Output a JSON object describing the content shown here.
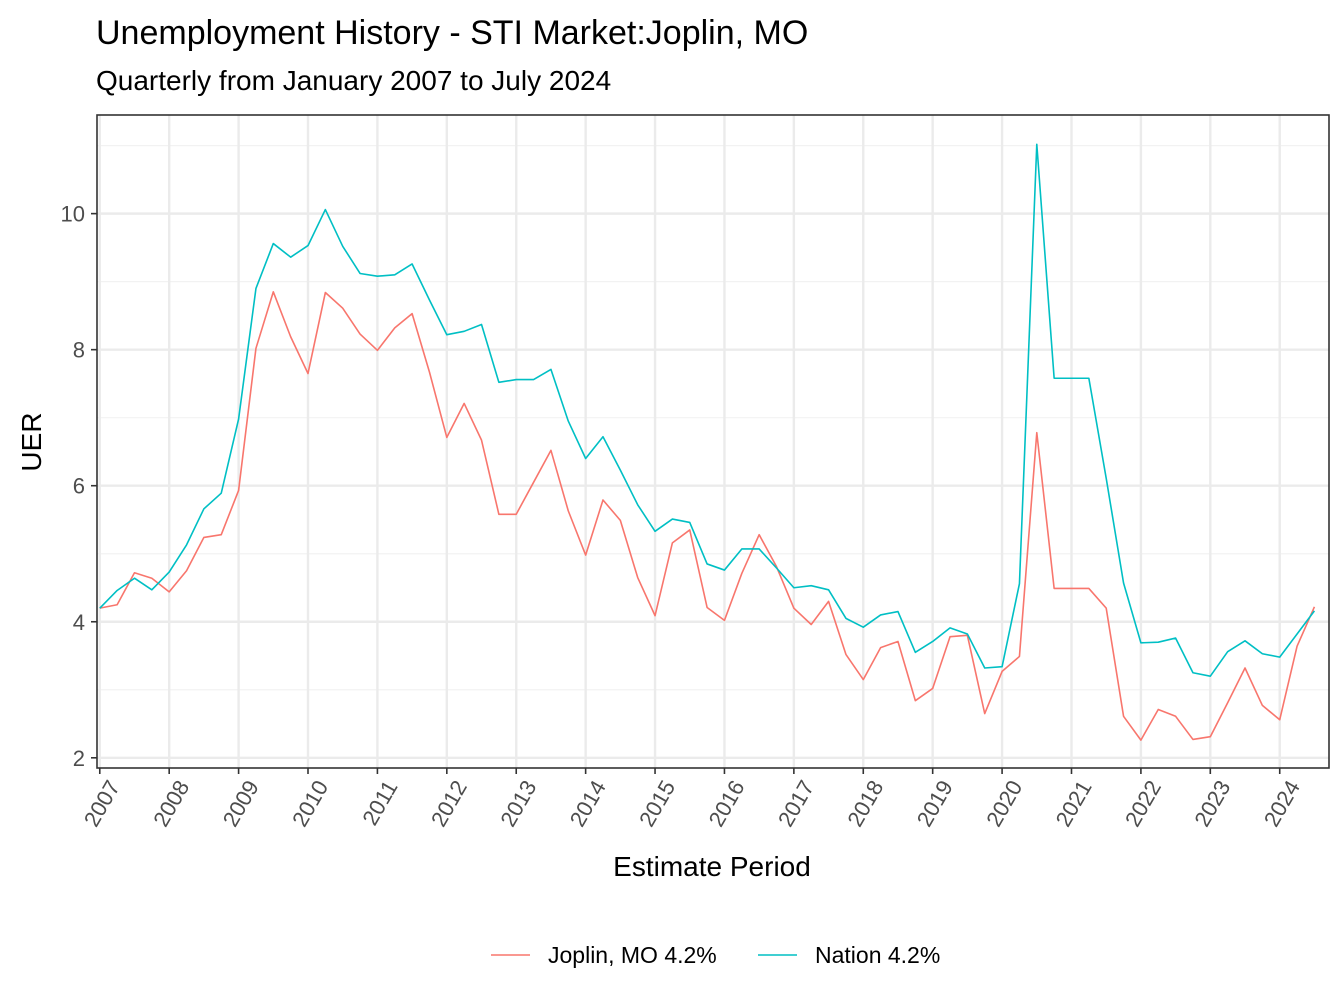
{
  "chart_data": {
    "type": "line",
    "title": "Unemployment History - STI Market:Joplin, MO",
    "subtitle": "Quarterly from January 2007 to July 2024",
    "xlabel": "Estimate Period",
    "ylabel": "UER",
    "x_ticks": [
      "2007",
      "2008",
      "2009",
      "2010",
      "2011",
      "2012",
      "2013",
      "2014",
      "2015",
      "2016",
      "2017",
      "2018",
      "2019",
      "2020",
      "2021",
      "2022",
      "2023",
      "2024"
    ],
    "y_ticks": [
      "2",
      "4",
      "6",
      "8",
      "10"
    ],
    "xlim": [
      2006.96,
      2024.71
    ],
    "ylim": [
      1.85,
      11.45
    ],
    "grid": true,
    "legend_position": "bottom",
    "x": [
      2007.0,
      2007.25,
      2007.5,
      2007.75,
      2008.0,
      2008.25,
      2008.5,
      2008.75,
      2009.0,
      2009.25,
      2009.5,
      2009.75,
      2010.0,
      2010.25,
      2010.5,
      2010.75,
      2011.0,
      2011.25,
      2011.5,
      2011.75,
      2012.0,
      2012.25,
      2012.5,
      2012.75,
      2013.0,
      2013.25,
      2013.5,
      2013.75,
      2014.0,
      2014.25,
      2014.5,
      2014.75,
      2015.0,
      2015.25,
      2015.5,
      2015.75,
      2016.0,
      2016.25,
      2016.5,
      2016.75,
      2017.0,
      2017.25,
      2017.5,
      2017.75,
      2018.0,
      2018.25,
      2018.5,
      2018.75,
      2019.0,
      2019.25,
      2019.5,
      2019.75,
      2020.0,
      2020.25,
      2020.5,
      2020.75,
      2021.0,
      2021.25,
      2021.5,
      2021.75,
      2022.0,
      2022.25,
      2022.5,
      2022.75,
      2023.0,
      2023.25,
      2023.5,
      2023.75,
      2024.0,
      2024.25,
      2024.5
    ],
    "series": [
      {
        "name": "Joplin, MO 4.2%",
        "color": "#F8766D",
        "values": [
          4.2,
          4.25,
          4.72,
          4.64,
          4.44,
          4.75,
          5.24,
          5.28,
          5.93,
          8.02,
          8.85,
          8.19,
          7.65,
          8.84,
          8.61,
          8.23,
          7.99,
          8.32,
          8.53,
          7.67,
          6.71,
          7.21,
          6.67,
          5.58,
          5.58,
          6.05,
          6.52,
          5.63,
          4.98,
          5.79,
          5.49,
          4.65,
          4.09,
          5.16,
          5.35,
          4.21,
          4.02,
          4.71,
          5.28,
          4.81,
          4.2,
          3.96,
          4.3,
          3.52,
          3.15,
          3.62,
          3.71,
          2.84,
          3.02,
          3.78,
          3.8,
          2.65,
          3.27,
          3.49,
          6.78,
          4.49,
          4.49,
          4.49,
          4.2,
          2.61,
          2.26,
          2.71,
          2.61,
          2.27,
          2.31,
          2.81,
          3.32,
          2.77,
          2.56,
          3.64,
          4.22
        ]
      },
      {
        "name": "Nation 4.2%",
        "color": "#00BFC4",
        "values": [
          4.2,
          4.46,
          4.64,
          4.47,
          4.73,
          5.13,
          5.66,
          5.89,
          6.98,
          8.9,
          9.56,
          9.36,
          9.53,
          10.06,
          9.52,
          9.12,
          9.08,
          9.1,
          9.26,
          8.73,
          8.22,
          8.27,
          8.37,
          7.52,
          7.56,
          7.56,
          7.71,
          6.95,
          6.4,
          6.72,
          6.23,
          5.72,
          5.33,
          5.51,
          5.46,
          4.85,
          4.76,
          5.07,
          5.07,
          4.79,
          4.5,
          4.53,
          4.47,
          4.05,
          3.92,
          4.1,
          4.15,
          3.55,
          3.71,
          3.91,
          3.82,
          3.32,
          3.34,
          4.56,
          11.02,
          7.58,
          7.58,
          7.58,
          6.11,
          4.57,
          3.69,
          3.7,
          3.76,
          3.25,
          3.2,
          3.56,
          3.72,
          3.53,
          3.48,
          3.82,
          4.16
        ]
      }
    ]
  }
}
